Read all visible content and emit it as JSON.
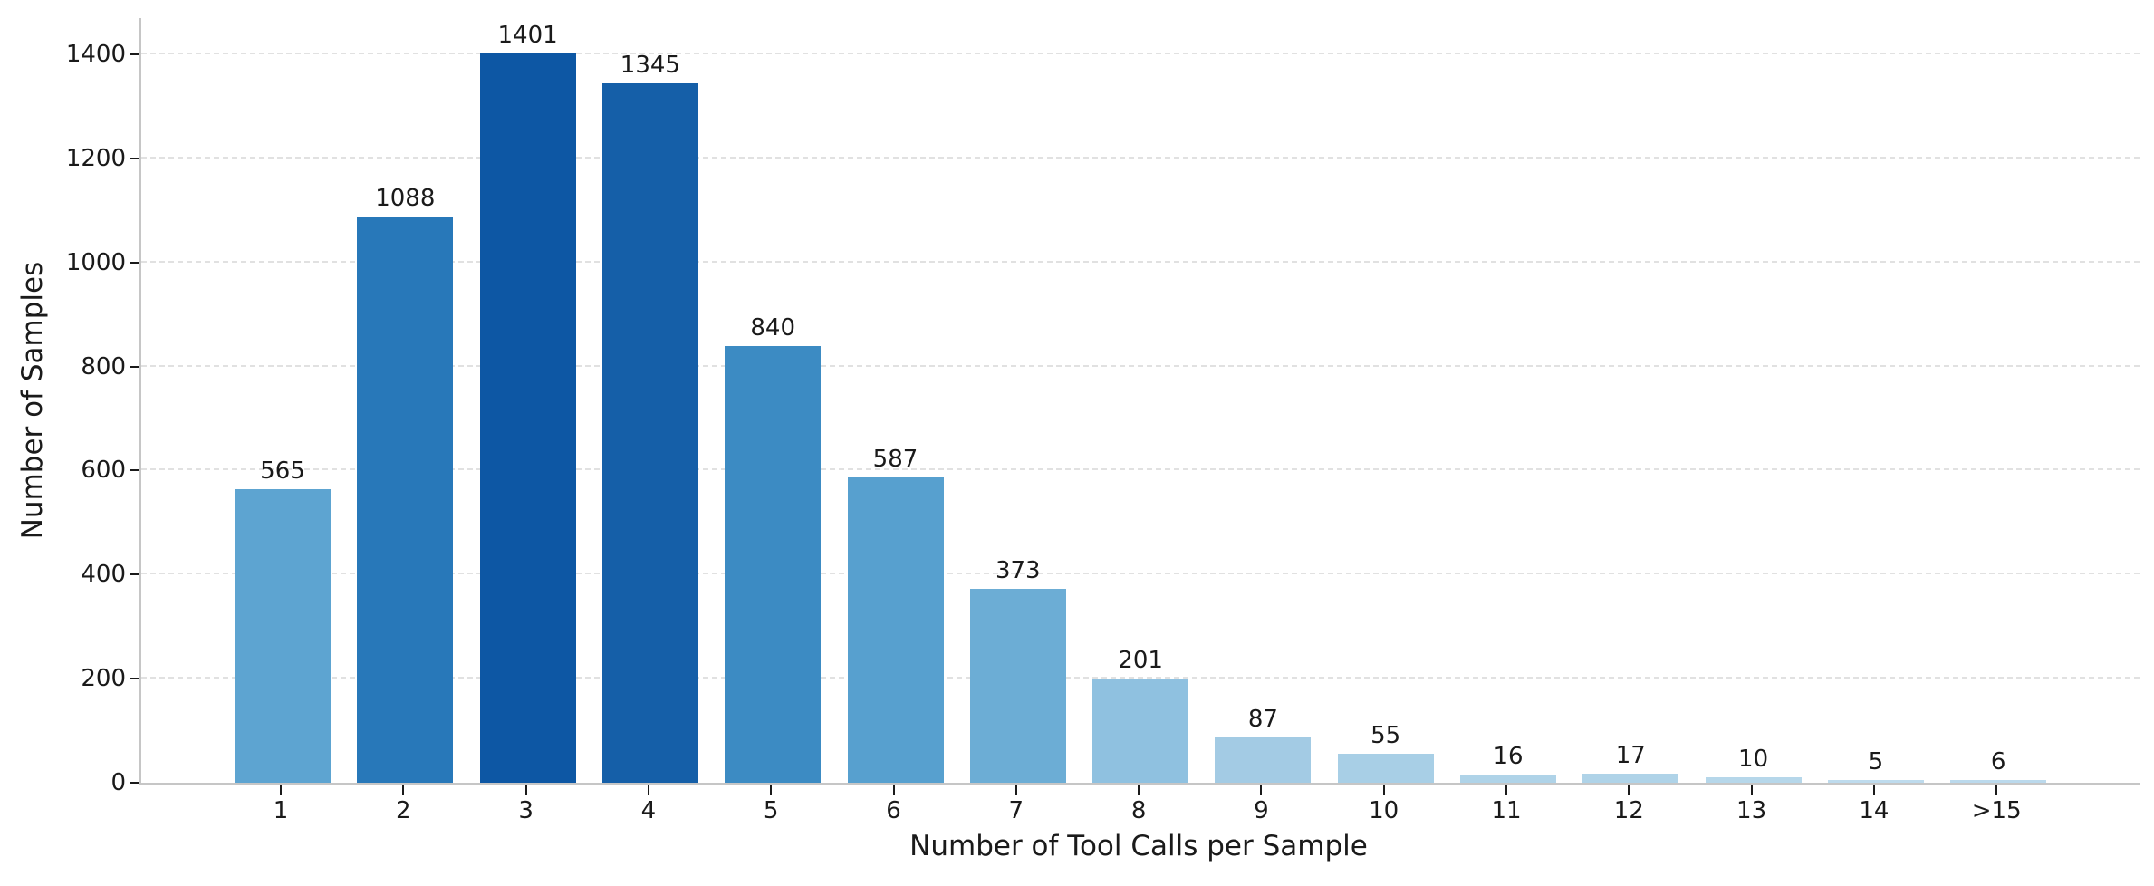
{
  "chart_data": {
    "type": "bar",
    "title": "",
    "xlabel": "Number of Tool Calls per Sample",
    "ylabel": "Number of Samples",
    "categories": [
      "1",
      "2",
      "3",
      "4",
      "5",
      "6",
      "7",
      "8",
      "9",
      "10",
      "11",
      "12",
      "13",
      "14",
      ">15"
    ],
    "values": [
      565,
      1088,
      1401,
      1345,
      840,
      587,
      373,
      201,
      87,
      55,
      16,
      17,
      10,
      5,
      6
    ],
    "bar_colors": [
      "#5da4d1",
      "#2878b9",
      "#0d57a4",
      "#155fa8",
      "#3c8bc3",
      "#57a0cf",
      "#6cadd5",
      "#8fc1e0",
      "#a3cbe4",
      "#a8cfe6",
      "#afd3e8",
      "#afd3e8",
      "#b6d7ea",
      "#bedbed",
      "#bbd9ec"
    ],
    "value_labels": [
      "565",
      "1088",
      "1401",
      "1345",
      "840",
      "587",
      "373",
      "201",
      "87",
      "55",
      "16",
      "17",
      "10",
      "5",
      "6"
    ],
    "yticks": [
      0,
      200,
      400,
      600,
      800,
      1000,
      1200,
      1400
    ],
    "ylim": [
      0,
      1470
    ],
    "grid": "horizontal-dashed",
    "legend": "none",
    "colors": {
      "grid": "#e1e1e1",
      "spine": "#c6c6c6",
      "tick": "#1a1a1a",
      "text": "#1a1a1a",
      "background": "#ffffff"
    }
  }
}
